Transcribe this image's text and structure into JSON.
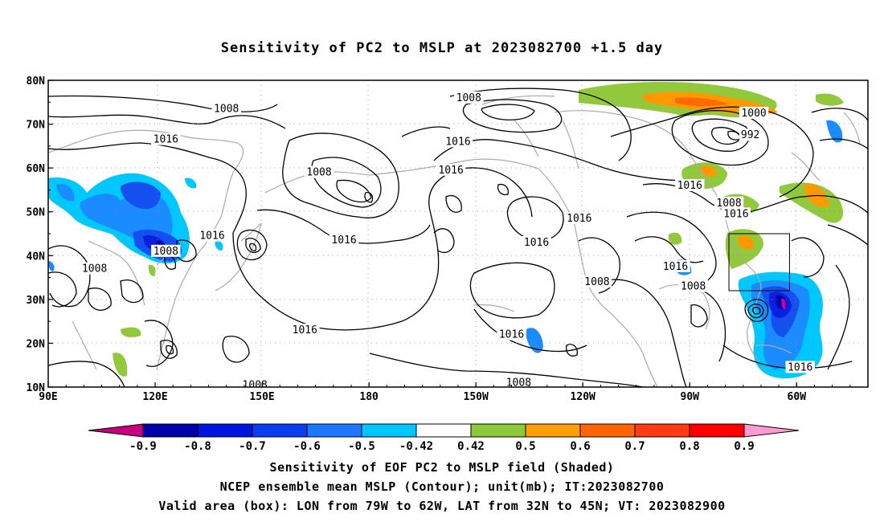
{
  "title": "Sensitivity of PC2 to MSLP at 2023082700 +1.5 day",
  "map": {
    "lon_labels": [
      "90E",
      "120E",
      "150E",
      "180",
      "150W",
      "120W",
      "90W",
      "60W"
    ],
    "lat_labels": [
      "80N",
      "70N",
      "60N",
      "50N",
      "40N",
      "30N",
      "20N",
      "10N"
    ],
    "contour_labels": [
      {
        "text": "1008",
        "lon": 140,
        "lat": 73.5
      },
      {
        "text": "1016",
        "lon": 123,
        "lat": 66.5
      },
      {
        "text": "1008",
        "lon": 166,
        "lat": 59
      },
      {
        "text": "1016",
        "lon": -155,
        "lat": 66
      },
      {
        "text": "1008",
        "lon": -152,
        "lat": 76
      },
      {
        "text": "1016",
        "lon": -157,
        "lat": 59.5
      },
      {
        "text": "1000",
        "lon": -72,
        "lat": 72.5
      },
      {
        "text": "992",
        "lon": -73,
        "lat": 67.5
      },
      {
        "text": "1016",
        "lon": -90,
        "lat": 56
      },
      {
        "text": "1008",
        "lon": -79,
        "lat": 52
      },
      {
        "text": "1016",
        "lon": -77,
        "lat": 49.5
      },
      {
        "text": "1016",
        "lon": -121,
        "lat": 48.5
      },
      {
        "text": "1016",
        "lon": 136,
        "lat": 44.5
      },
      {
        "text": "1008",
        "lon": 123,
        "lat": 41
      },
      {
        "text": "1016",
        "lon": 173,
        "lat": 43.5
      },
      {
        "text": "1016",
        "lon": -133,
        "lat": 43
      },
      {
        "text": "1008",
        "lon": 103,
        "lat": 37
      },
      {
        "text": "1016",
        "lon": -94,
        "lat": 37.5
      },
      {
        "text": "1008",
        "lon": -116,
        "lat": 34
      },
      {
        "text": "1008",
        "lon": -89,
        "lat": 33
      },
      {
        "text": "1016",
        "lon": 162,
        "lat": 23
      },
      {
        "text": "1016",
        "lon": -140,
        "lat": 22
      },
      {
        "text": "1016",
        "lon": -59,
        "lat": 14.5
      },
      {
        "text": "1008",
        "lon": 148,
        "lat": 10.5
      },
      {
        "text": "1008",
        "lon": -138,
        "lat": 11
      }
    ],
    "valid_box": {
      "lon_min": -79,
      "lon_max": -62,
      "lat_min": 32,
      "lat_max": 45
    },
    "colors": {
      "neg_-0.9": "#cc0099",
      "neg_-0.8": "#0000b0",
      "neg_-0.7": "#0a1fe0",
      "neg_-0.6": "#1450f0",
      "neg_-0.5": "#1a8cff",
      "neg_-0.42": "#00c8ff",
      "pos_0.42": "#92c83c",
      "pos_0.5": "#ff9900",
      "pos_0.6": "#ff6a00",
      "pos_0.7": "#ff3300",
      "pos_0.8": "#ff0000",
      "pos_0.9": "#ff99cc",
      "coastline": "#aaaaaa"
    }
  },
  "colorbar": {
    "labels": [
      "-0.9",
      "-0.8",
      "-0.7",
      "-0.6",
      "-0.5",
      "-0.42",
      "0.42",
      "0.5",
      "0.6",
      "0.7",
      "0.8",
      "0.9"
    ],
    "colors": [
      "#c8007c",
      "#0000a8",
      "#0014dc",
      "#0a3cf0",
      "#1e78ff",
      "#00c6ff",
      "#ffffff",
      "#8cc83c",
      "#ff9e00",
      "#ff6400",
      "#ff3a14",
      "#ff0000",
      "#ff9ad2"
    ]
  },
  "captions": {
    "line1": "Sensitivity of EOF PC2 to MSLP field (Shaded)",
    "line2": "NCEP ensemble mean MSLP (Contour); unit(mb); IT:2023082700",
    "line3": "Valid area (box): LON from 79W to 62W, LAT from 32N to 45N; VT: 2023082900"
  }
}
